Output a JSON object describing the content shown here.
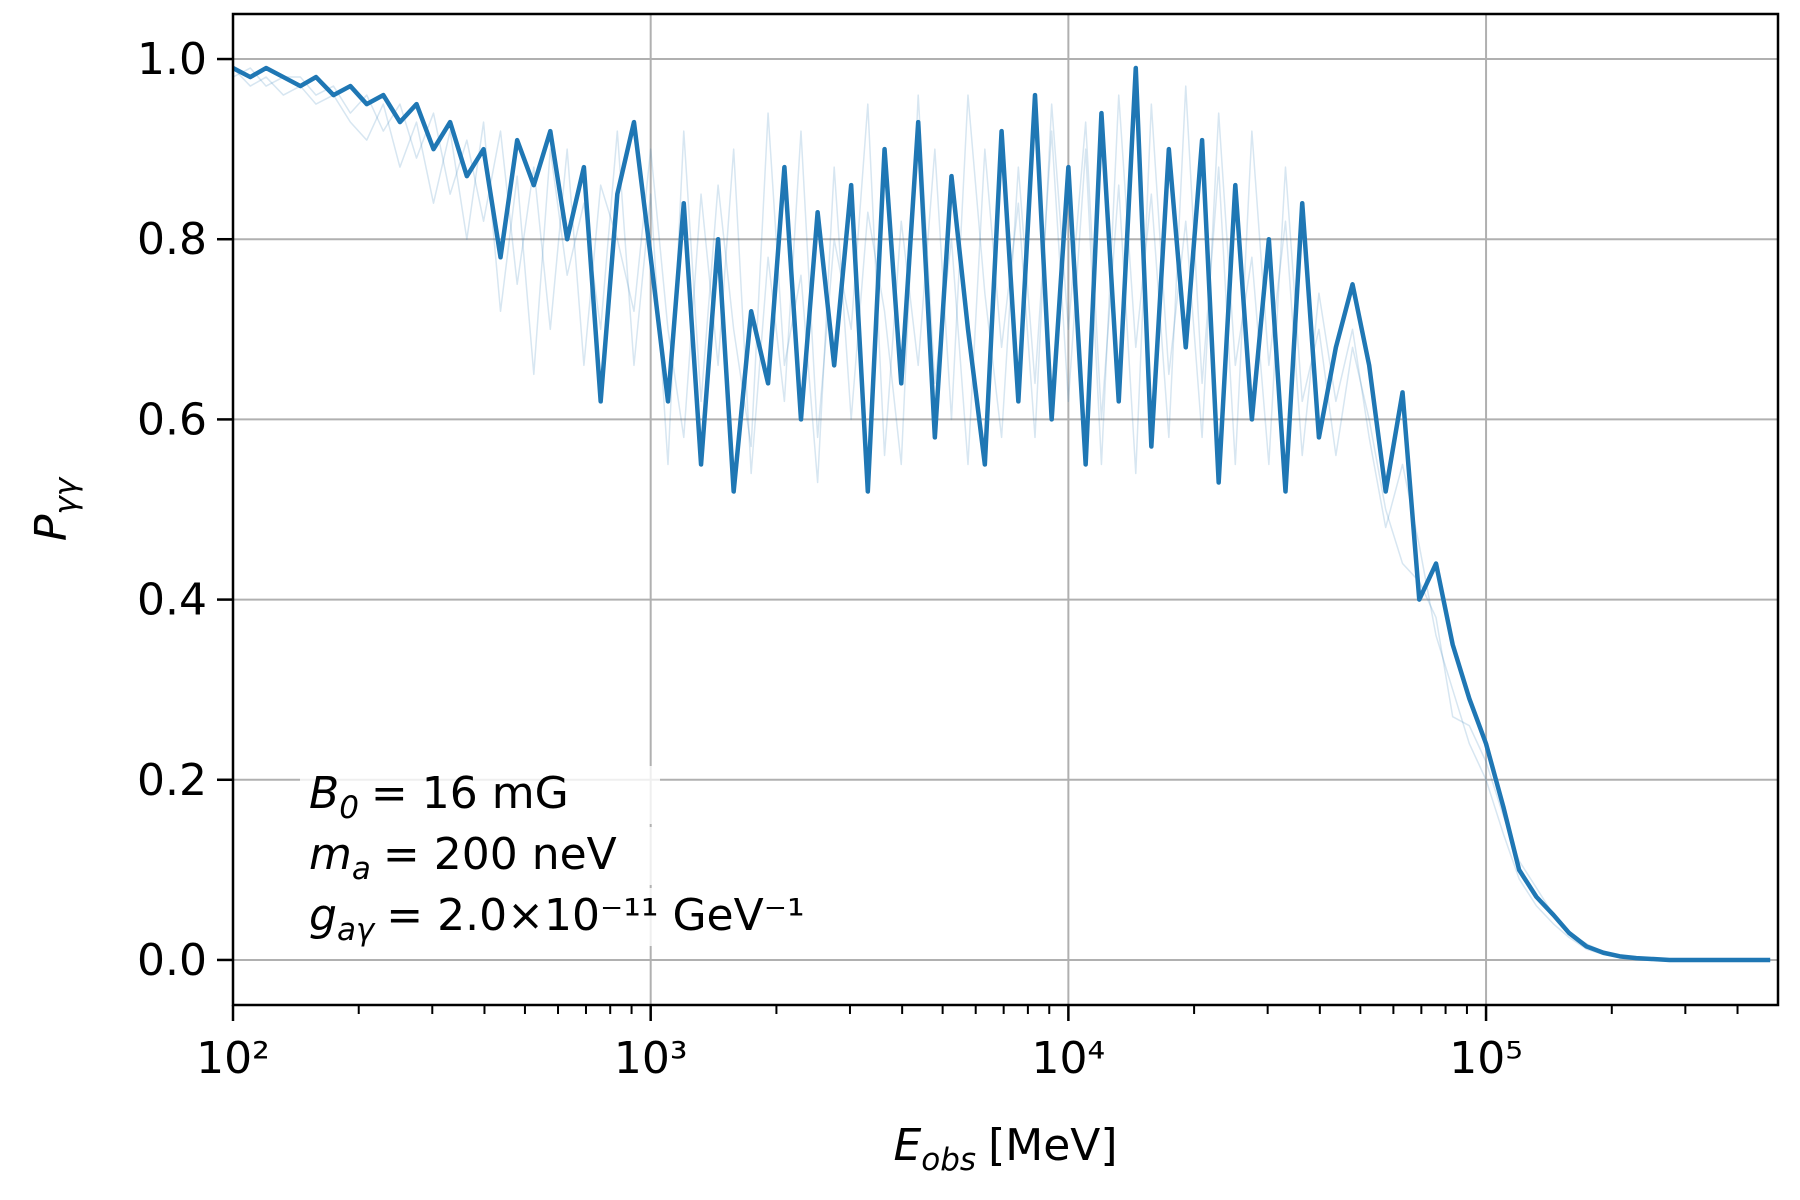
{
  "chart_data": {
    "type": "line",
    "x_label": {
      "symbol": "E",
      "subscript": "obs",
      "unit": "[MeV]"
    },
    "y_label": {
      "symbol": "P",
      "subscript": "γγ"
    },
    "annotations": [
      {
        "symbol": "B",
        "subscript": "0",
        "text": "= 16 mG"
      },
      {
        "symbol": "m",
        "subscript": "a",
        "text": "=  200 neV"
      },
      {
        "symbol": "g",
        "subscript": "aγ",
        "text": "=  2.0×10⁻¹¹ GeV⁻¹"
      }
    ],
    "x_scale": "log",
    "xlim": [
      100,
      500000
    ],
    "ylim": [
      -0.05,
      1.05
    ],
    "xticks": [
      {
        "value": 100,
        "label": "10²"
      },
      {
        "value": 1000,
        "label": "10³"
      },
      {
        "value": 10000,
        "label": "10⁴"
      },
      {
        "value": 100000,
        "label": "10⁵"
      }
    ],
    "xminorticks": [
      200,
      300,
      400,
      500,
      600,
      700,
      800,
      900,
      2000,
      3000,
      4000,
      5000,
      6000,
      7000,
      8000,
      9000,
      20000,
      30000,
      40000,
      50000,
      60000,
      70000,
      80000,
      90000,
      200000,
      300000,
      400000
    ],
    "yticks": [
      {
        "value": 0,
        "label": "0.0"
      },
      0.2,
      0.4,
      0.6,
      0.8,
      {
        "value": 1,
        "label": "1.0"
      }
    ],
    "grid": true,
    "x": [
      100,
      110,
      120,
      132,
      145,
      158,
      174,
      191,
      209,
      229,
      251,
      275,
      302,
      331,
      363,
      398,
      437,
      479,
      525,
      575,
      631,
      692,
      759,
      832,
      912,
      1000,
      1100,
      1200,
      1320,
      1450,
      1580,
      1740,
      1910,
      2090,
      2290,
      2510,
      2750,
      3020,
      3310,
      3630,
      3980,
      4370,
      4790,
      5250,
      5750,
      6310,
      6920,
      7590,
      8320,
      9120,
      10000,
      11000,
      12000,
      13200,
      14500,
      15800,
      17400,
      19100,
      20900,
      22900,
      25100,
      27500,
      30200,
      33100,
      36300,
      39800,
      43700,
      47900,
      52500,
      57500,
      63100,
      69200,
      75900,
      83200,
      91200,
      100000,
      110000,
      120000,
      132000,
      145000,
      158000,
      174000,
      191000,
      209000,
      229000,
      251000,
      275000,
      302000,
      331000,
      363000,
      398000,
      437000,
      479000
    ],
    "series": [
      {
        "color": "#1f77b4",
        "alpha": 0.18,
        "linewidth": 1.5,
        "values": [
          0.98,
          0.99,
          0.97,
          0.98,
          0.98,
          0.96,
          0.97,
          0.94,
          0.96,
          0.92,
          0.95,
          0.89,
          0.94,
          0.85,
          0.91,
          0.82,
          0.92,
          0.75,
          0.88,
          0.7,
          0.9,
          0.66,
          0.86,
          0.8,
          0.72,
          0.9,
          0.7,
          0.58,
          0.85,
          0.66,
          0.9,
          0.54,
          0.78,
          0.62,
          0.92,
          0.58,
          0.8,
          0.7,
          0.95,
          0.56,
          0.82,
          0.66,
          0.9,
          0.6,
          0.96,
          0.74,
          0.58,
          0.88,
          0.64,
          0.92,
          0.62,
          0.9,
          0.55,
          0.96,
          0.68,
          0.85,
          0.58,
          0.97,
          0.64,
          0.88,
          0.55,
          0.92,
          0.66,
          0.82,
          0.56,
          0.74,
          0.62,
          0.7,
          0.58,
          0.48,
          0.55,
          0.46,
          0.36,
          0.3,
          0.24,
          0.2,
          0.14,
          0.09,
          0.06,
          0.04,
          0.025,
          0.012,
          0.006,
          0.003,
          0.0015,
          0.001,
          0,
          0,
          0,
          0,
          0,
          0,
          0
        ]
      },
      {
        "color": "#1f77b4",
        "alpha": 0.18,
        "linewidth": 1.5,
        "values": [
          0.99,
          0.97,
          0.98,
          0.96,
          0.97,
          0.95,
          0.96,
          0.93,
          0.91,
          0.95,
          0.88,
          0.93,
          0.84,
          0.92,
          0.8,
          0.93,
          0.72,
          0.87,
          0.65,
          0.9,
          0.76,
          0.84,
          0.7,
          0.92,
          0.66,
          0.85,
          0.55,
          0.92,
          0.62,
          0.86,
          0.7,
          0.57,
          0.94,
          0.66,
          0.76,
          0.53,
          0.88,
          0.6,
          0.83,
          0.72,
          0.55,
          0.96,
          0.64,
          0.8,
          0.55,
          0.9,
          0.68,
          0.84,
          0.58,
          0.95,
          0.7,
          0.93,
          0.6,
          0.86,
          0.54,
          0.95,
          0.65,
          0.82,
          0.58,
          0.94,
          0.66,
          0.78,
          0.55,
          0.88,
          0.62,
          0.7,
          0.56,
          0.68,
          0.6,
          0.5,
          0.44,
          0.42,
          0.38,
          0.27,
          0.26,
          0.22,
          0.16,
          0.11,
          0.08,
          0.05,
          0.03,
          0.018,
          0.009,
          0.005,
          0.002,
          0.001,
          0,
          0,
          0,
          0,
          0,
          0,
          0
        ]
      },
      {
        "color": "#1f77b4",
        "alpha": 1,
        "linewidth": 4.5,
        "values": [
          0.99,
          0.98,
          0.99,
          0.98,
          0.97,
          0.98,
          0.96,
          0.97,
          0.95,
          0.96,
          0.93,
          0.95,
          0.9,
          0.93,
          0.87,
          0.9,
          0.78,
          0.91,
          0.86,
          0.92,
          0.8,
          0.88,
          0.62,
          0.85,
          0.93,
          0.78,
          0.62,
          0.84,
          0.55,
          0.8,
          0.52,
          0.72,
          0.64,
          0.88,
          0.6,
          0.83,
          0.66,
          0.86,
          0.52,
          0.9,
          0.64,
          0.93,
          0.58,
          0.87,
          0.7,
          0.55,
          0.92,
          0.62,
          0.96,
          0.6,
          0.88,
          0.55,
          0.94,
          0.62,
          0.99,
          0.57,
          0.9,
          0.68,
          0.91,
          0.53,
          0.86,
          0.6,
          0.8,
          0.52,
          0.84,
          0.58,
          0.68,
          0.75,
          0.66,
          0.52,
          0.63,
          0.4,
          0.44,
          0.35,
          0.29,
          0.24,
          0.17,
          0.1,
          0.07,
          0.05,
          0.03,
          0.015,
          0.008,
          0.004,
          0.002,
          0.001,
          0,
          0,
          0,
          0,
          0,
          0,
          0
        ]
      }
    ]
  }
}
